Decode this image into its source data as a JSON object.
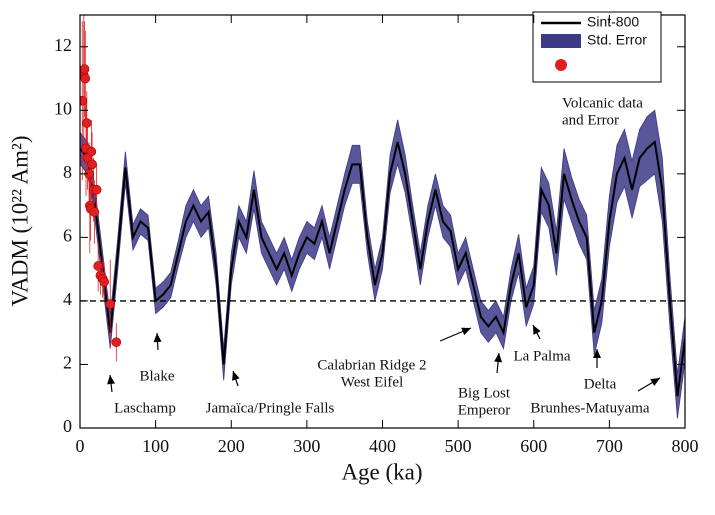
{
  "chart_data": {
    "type": "line",
    "xlabel": "Age (ka)",
    "ylabel": "VADM (10²² Am²)",
    "xlim": [
      0,
      800
    ],
    "ylim": [
      0,
      13
    ],
    "xticks": [
      0,
      100,
      200,
      300,
      400,
      500,
      600,
      700,
      800
    ],
    "yticks": [
      0,
      2,
      4,
      6,
      8,
      10,
      12
    ],
    "reference_line": 4,
    "x": [
      0,
      10,
      20,
      30,
      40,
      50,
      60,
      70,
      80,
      90,
      100,
      110,
      120,
      130,
      140,
      150,
      160,
      170,
      180,
      190,
      200,
      210,
      220,
      230,
      240,
      250,
      260,
      270,
      280,
      290,
      300,
      310,
      320,
      330,
      340,
      350,
      360,
      370,
      380,
      390,
      400,
      410,
      420,
      430,
      440,
      450,
      460,
      470,
      480,
      490,
      500,
      510,
      520,
      530,
      540,
      550,
      560,
      570,
      580,
      590,
      600,
      610,
      620,
      630,
      640,
      650,
      660,
      670,
      680,
      690,
      700,
      710,
      720,
      730,
      740,
      750,
      760,
      770,
      780,
      790,
      800
    ],
    "series": [
      {
        "name": "Sint-800",
        "color": "#000000",
        "values": [
          8.8,
          8.5,
          7,
          5,
          3,
          5.5,
          8.2,
          6,
          6.5,
          6.3,
          4,
          4.2,
          4.5,
          5.5,
          6.5,
          7,
          6.5,
          6.8,
          5,
          2,
          5,
          6.5,
          6,
          7.5,
          6,
          5.5,
          5,
          5.5,
          4.8,
          5.5,
          6,
          5.8,
          6.5,
          5.5,
          6.5,
          7.5,
          8.3,
          8.3,
          6,
          4.5,
          5.5,
          8,
          9,
          8,
          6.5,
          5,
          6.5,
          7.5,
          6.5,
          6.2,
          5,
          5.5,
          4.5,
          3.5,
          3.2,
          3.5,
          3,
          4.5,
          5.5,
          3.8,
          4.5,
          7.5,
          7,
          5.5,
          8,
          7.2,
          6.5,
          6,
          3,
          4,
          6.5,
          8,
          8.5,
          7.5,
          8.5,
          8.8,
          9,
          7.5,
          4,
          1,
          2.8
        ]
      },
      {
        "name": "Std. Error",
        "color": "#3d3888",
        "type": "band",
        "values": [
          0.5,
          0.5,
          0.5,
          0.5,
          0.5,
          0.5,
          0.5,
          0.4,
          0.4,
          0.4,
          0.4,
          0.4,
          0.4,
          0.4,
          0.5,
          0.5,
          0.5,
          0.5,
          0.5,
          0.5,
          0.5,
          0.5,
          0.5,
          0.6,
          0.5,
          0.5,
          0.5,
          0.5,
          0.5,
          0.5,
          0.5,
          0.5,
          0.5,
          0.5,
          0.5,
          0.5,
          0.6,
          0.6,
          0.5,
          0.5,
          0.5,
          0.6,
          0.7,
          0.6,
          0.5,
          0.5,
          0.5,
          0.5,
          0.5,
          0.5,
          0.5,
          0.5,
          0.5,
          0.5,
          0.5,
          0.5,
          0.5,
          0.5,
          0.6,
          0.6,
          0.6,
          0.7,
          0.7,
          0.7,
          0.8,
          0.7,
          0.7,
          0.7,
          0.7,
          0.7,
          0.8,
          0.9,
          0.9,
          0.9,
          0.9,
          1,
          1,
          1,
          0.8,
          0.7,
          0.7
        ]
      },
      {
        "color": "#e02020",
        "type": "scatter",
        "x": [
          3,
          5,
          6,
          7,
          8,
          9,
          10,
          12,
          13,
          14,
          15,
          16,
          18,
          19,
          22,
          24,
          27,
          30,
          32,
          40,
          48
        ],
        "values": [
          10.3,
          11.1,
          11.3,
          11,
          8.8,
          9.6,
          8.5,
          8,
          7,
          6.9,
          8.7,
          8.3,
          7.5,
          6.8,
          7.5,
          5.1,
          4.8,
          4.7,
          4.6,
          3.9,
          2.7
        ],
        "errors": [
          2.5,
          2,
          1.5,
          1.5,
          1.5,
          1,
          1,
          1,
          1.5,
          1,
          1,
          1,
          1,
          1,
          0.8,
          0.8,
          0.6,
          0.6,
          0.6,
          1.4,
          0.6
        ]
      }
    ],
    "annotations": [
      [
        "Laschamp"
      ],
      [
        "Blake"
      ],
      [
        "Jamaïca/Pringle Falls"
      ],
      [
        "Calabrian Ridge 2",
        "West Eifel"
      ],
      [
        "Big Lost",
        "Emperor"
      ],
      [
        "La Palma"
      ],
      [
        "Delta"
      ],
      [
        "Brunhes-Matuyama"
      ],
      [
        "Volcanic data",
        "and Error"
      ]
    ]
  }
}
